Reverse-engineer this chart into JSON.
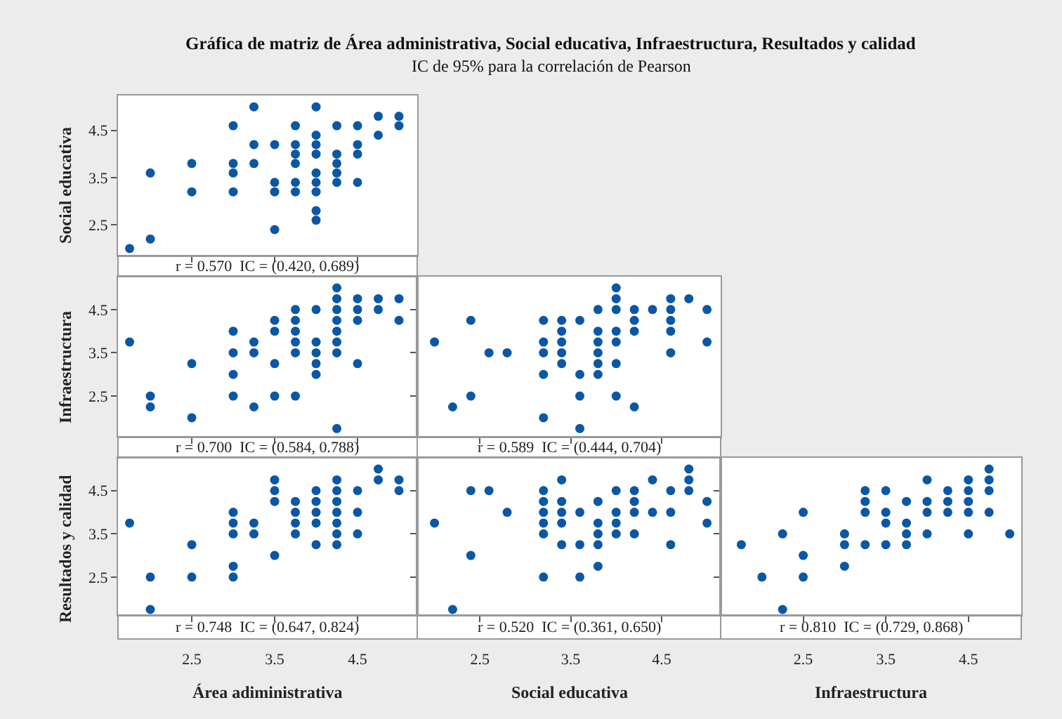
{
  "chart_data": [
    {
      "type": "scatter",
      "title": "Gráfica de matriz de Área administrativa, Social educativa, Infraestructura, Resultados y calidad",
      "subtitle": "IC de 95% para la correlación de Pearson",
      "ylabel": "Social educativa",
      "tick_labels": "y",
      "marker": "circle",
      "color": "#0b57a4",
      "x": [
        1.75,
        2,
        2,
        2.5,
        2.5,
        3,
        3,
        3,
        3,
        3.25,
        3.25,
        3.25,
        3.5,
        3.5,
        3.5,
        3.5,
        3.75,
        3.75,
        3.75,
        3.75,
        3.75,
        3.75,
        4,
        4,
        4,
        4,
        4,
        4,
        4,
        4,
        4,
        4.25,
        4.25,
        4.25,
        4.25,
        4.25,
        4.5,
        4.5,
        4.5,
        4.5,
        4.75,
        4.75,
        5,
        5
      ],
      "values": [
        2.0,
        3.6,
        2.2,
        3.8,
        3.2,
        4.6,
        3.8,
        3.6,
        3.2,
        5.0,
        4.2,
        3.8,
        4.2,
        3.4,
        3.2,
        2.4,
        4.6,
        4.2,
        4.0,
        3.8,
        3.4,
        3.2,
        5.0,
        4.4,
        4.2,
        4.0,
        3.6,
        3.4,
        3.2,
        2.8,
        2.6,
        4.6,
        4.0,
        3.8,
        3.6,
        3.4,
        4.6,
        4.2,
        4.0,
        3.4,
        4.8,
        4.4,
        4.8,
        4.6
      ],
      "xlim": [
        1.61,
        5.22
      ],
      "ylim": [
        1.85,
        5.24
      ],
      "xticks": [
        2.5,
        3.5,
        4.5
      ],
      "yticks": [
        2.5,
        3.5,
        4.5
      ],
      "annotations": [
        "r = 0.570  IC = (0.420, 0.689)"
      ]
    },
    {
      "type": "scatter",
      "ylabel": "Infraestructura",
      "tick_labels": "y",
      "marker": "circle",
      "color": "#0b57a4",
      "x": [
        1.75,
        2,
        2,
        2.5,
        2.5,
        3,
        3,
        3,
        3,
        3.25,
        3.25,
        3.25,
        3.5,
        3.5,
        3.5,
        3.5,
        3.75,
        3.75,
        3.75,
        3.75,
        3.75,
        3.75,
        4,
        4,
        4,
        4,
        4,
        4.25,
        4.25,
        4.25,
        4.25,
        4.25,
        4.25,
        4.25,
        4.25,
        4.5,
        4.5,
        4.5,
        4.5,
        4.75,
        4.75,
        5,
        5
      ],
      "values": [
        3.75,
        2.5,
        2.25,
        3.25,
        2.0,
        4.0,
        3.5,
        3.0,
        2.5,
        3.75,
        3.5,
        2.25,
        4.25,
        4.0,
        3.25,
        2.5,
        4.5,
        4.25,
        4.0,
        3.75,
        3.5,
        2.5,
        4.5,
        3.75,
        3.5,
        3.25,
        3.0,
        5.0,
        4.75,
        4.5,
        4.25,
        4.0,
        3.75,
        3.5,
        1.75,
        4.75,
        4.5,
        4.25,
        3.25,
        4.75,
        4.5,
        4.75,
        4.25
      ],
      "xlim": [
        1.61,
        5.22
      ],
      "ylim": [
        1.56,
        5.26
      ],
      "xticks": [
        2.5,
        3.5,
        4.5
      ],
      "yticks": [
        2.5,
        3.5,
        4.5
      ],
      "annotations": [
        "r = 0.700  IC = (0.584, 0.788)"
      ]
    },
    {
      "type": "scatter",
      "tick_labels": false,
      "marker": "circle",
      "color": "#0b57a4",
      "x": [
        2.0,
        2.2,
        2.4,
        2.4,
        2.6,
        2.8,
        3.2,
        3.2,
        3.2,
        3.2,
        3.2,
        3.4,
        3.4,
        3.4,
        3.4,
        3.4,
        3.6,
        3.6,
        3.6,
        3.6,
        3.8,
        3.8,
        3.8,
        3.8,
        3.8,
        3.8,
        4.0,
        4.0,
        4.0,
        4.0,
        4.0,
        4.0,
        4.0,
        4.2,
        4.2,
        4.2,
        4.2,
        4.4,
        4.6,
        4.6,
        4.6,
        4.6,
        4.6,
        4.8,
        5.0,
        5.0
      ],
      "values": [
        3.75,
        2.25,
        4.25,
        2.5,
        3.5,
        3.5,
        4.25,
        3.75,
        3.5,
        3.0,
        2.0,
        4.25,
        4.0,
        3.75,
        3.5,
        3.25,
        4.25,
        3.0,
        2.5,
        1.75,
        4.5,
        4.0,
        3.75,
        3.5,
        3.25,
        3.0,
        5.0,
        4.75,
        4.5,
        4.0,
        3.75,
        3.25,
        2.5,
        4.5,
        4.25,
        4.0,
        2.25,
        4.5,
        4.75,
        4.5,
        4.25,
        4.0,
        3.5,
        4.75,
        4.5,
        3.75
      ],
      "xlim": [
        1.81,
        5.15
      ],
      "ylim": [
        1.56,
        5.26
      ],
      "xticks": [
        2.5,
        3.5,
        4.5
      ],
      "yticks": [
        2.5,
        3.5,
        4.5
      ],
      "annotations": [
        "r = 0.589  IC = (0.444, 0.704)"
      ]
    },
    {
      "type": "scatter",
      "xlabel": "Área adiministrativa",
      "ylabel": "Resultados y calidad",
      "marker": "circle",
      "color": "#0b57a4",
      "x": [
        1.75,
        2,
        2,
        2.5,
        2.5,
        3,
        3,
        3,
        3,
        3,
        3.25,
        3.25,
        3.5,
        3.5,
        3.5,
        3.5,
        3.75,
        3.75,
        3.75,
        3.75,
        4,
        4,
        4,
        4,
        4,
        4.25,
        4.25,
        4.25,
        4.25,
        4.25,
        4.25,
        4.25,
        4.5,
        4.5,
        4.5,
        4.75,
        4.75,
        5,
        5
      ],
      "values": [
        3.75,
        2.5,
        1.75,
        3.25,
        2.5,
        4.0,
        3.75,
        3.5,
        2.75,
        2.5,
        3.75,
        3.5,
        4.75,
        4.5,
        4.25,
        3.0,
        4.25,
        4.0,
        3.75,
        3.5,
        4.5,
        4.25,
        4.0,
        3.75,
        3.25,
        4.75,
        4.5,
        4.25,
        4.0,
        3.75,
        3.5,
        3.25,
        4.5,
        4.0,
        3.5,
        5.0,
        4.75,
        4.75,
        4.5
      ],
      "xlim": [
        1.61,
        5.22
      ],
      "ylim": [
        1.62,
        5.26
      ],
      "xticks": [
        2.5,
        3.5,
        4.5
      ],
      "yticks": [
        2.5,
        3.5,
        4.5
      ],
      "annotations": [
        "r = 0.748  IC = (0.647, 0.824)"
      ]
    },
    {
      "type": "scatter",
      "xlabel": "Social educativa",
      "tick_labels": "x",
      "marker": "circle",
      "color": "#0b57a4",
      "x": [
        2.0,
        2.2,
        2.4,
        2.4,
        2.6,
        2.8,
        3.2,
        3.2,
        3.2,
        3.2,
        3.2,
        3.2,
        3.4,
        3.4,
        3.4,
        3.4,
        3.4,
        3.6,
        3.6,
        3.6,
        3.8,
        3.8,
        3.8,
        3.8,
        3.8,
        4.0,
        4.0,
        4.0,
        4.0,
        4.2,
        4.2,
        4.2,
        4.2,
        4.4,
        4.4,
        4.6,
        4.6,
        4.6,
        4.8,
        4.8,
        4.8,
        5.0,
        5.0
      ],
      "values": [
        3.75,
        1.75,
        4.5,
        3.0,
        4.5,
        4.0,
        4.5,
        4.25,
        4.0,
        3.75,
        3.5,
        2.5,
        4.75,
        4.25,
        4.0,
        3.75,
        3.25,
        4.0,
        3.25,
        2.5,
        4.25,
        3.75,
        3.5,
        3.25,
        2.75,
        4.5,
        4.0,
        3.75,
        3.5,
        4.5,
        4.25,
        4.0,
        3.5,
        4.75,
        4.0,
        4.5,
        4.0,
        3.25,
        5.0,
        4.75,
        4.5,
        4.25,
        3.75
      ],
      "xlim": [
        1.81,
        5.15
      ],
      "ylim": [
        1.62,
        5.26
      ],
      "xticks": [
        2.5,
        3.5,
        4.5
      ],
      "yticks": [
        2.5,
        3.5,
        4.5
      ],
      "annotations": [
        "r = 0.520  IC = (0.361, 0.650)"
      ]
    },
    {
      "type": "scatter",
      "xlabel": "Infraestructura",
      "tick_labels": "x",
      "marker": "circle",
      "color": "#0b57a4",
      "x": [
        1.75,
        2,
        2.25,
        2.25,
        2.5,
        2.5,
        2.5,
        3,
        3,
        3,
        3.25,
        3.25,
        3.25,
        3.25,
        3.5,
        3.5,
        3.5,
        3.5,
        3.75,
        3.75,
        3.75,
        3.75,
        4,
        4,
        4,
        4,
        4.25,
        4.25,
        4.25,
        4.5,
        4.5,
        4.5,
        4.5,
        4.5,
        4.75,
        4.75,
        4.75,
        4.75,
        5
      ],
      "values": [
        3.25,
        2.5,
        3.5,
        1.75,
        4.0,
        3.0,
        2.5,
        3.5,
        3.25,
        2.75,
        4.5,
        4.25,
        4.0,
        3.25,
        4.5,
        4.0,
        3.75,
        3.25,
        4.25,
        3.75,
        3.5,
        3.25,
        4.75,
        4.25,
        4.0,
        3.5,
        4.5,
        4.25,
        4.0,
        4.75,
        4.5,
        4.25,
        4.0,
        3.5,
        5.0,
        4.75,
        4.5,
        4.0,
        3.5
      ],
      "xlim": [
        1.5,
        5.14
      ],
      "ylim": [
        1.62,
        5.26
      ],
      "xticks": [
        2.5,
        3.5,
        4.5
      ],
      "yticks": [
        2.5,
        3.5,
        4.5
      ],
      "annotations": [
        "r = 0.810  IC = (0.729, 0.868)"
      ]
    }
  ]
}
